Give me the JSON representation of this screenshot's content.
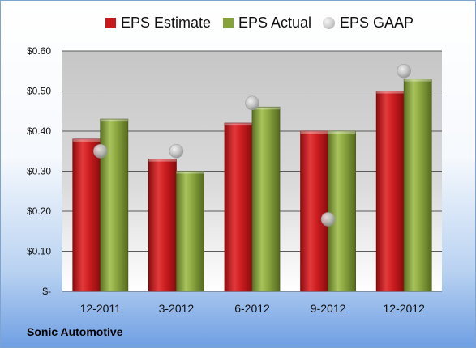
{
  "footer": {
    "company": "Sonic Automotive"
  },
  "colors": {
    "estimate": "#c8181b",
    "actual": "#86a23a",
    "gaap": "#bdbdbd"
  },
  "chart_data": {
    "type": "bar",
    "title": "",
    "xlabel": "",
    "ylabel": "",
    "categories": [
      "12-2011",
      "3-2012",
      "6-2012",
      "9-2012",
      "12-2012"
    ],
    "series": [
      {
        "name": "EPS Estimate",
        "type": "bar",
        "values": [
          0.38,
          0.33,
          0.42,
          0.4,
          0.5
        ]
      },
      {
        "name": "EPS Actual",
        "type": "bar",
        "values": [
          0.43,
          0.3,
          0.46,
          0.4,
          0.53
        ]
      },
      {
        "name": "EPS GAAP",
        "type": "scatter",
        "values": [
          0.35,
          0.35,
          0.47,
          0.18,
          0.55
        ]
      }
    ],
    "ylim": [
      0,
      0.6
    ],
    "yticks": [
      0,
      0.1,
      0.2,
      0.3,
      0.4,
      0.5,
      0.6
    ],
    "ytick_labels": [
      "$-",
      "$0.10",
      "$0.20",
      "$0.30",
      "$0.40",
      "$0.50",
      "$0.60"
    ],
    "grid": true,
    "legend_position": "top"
  }
}
